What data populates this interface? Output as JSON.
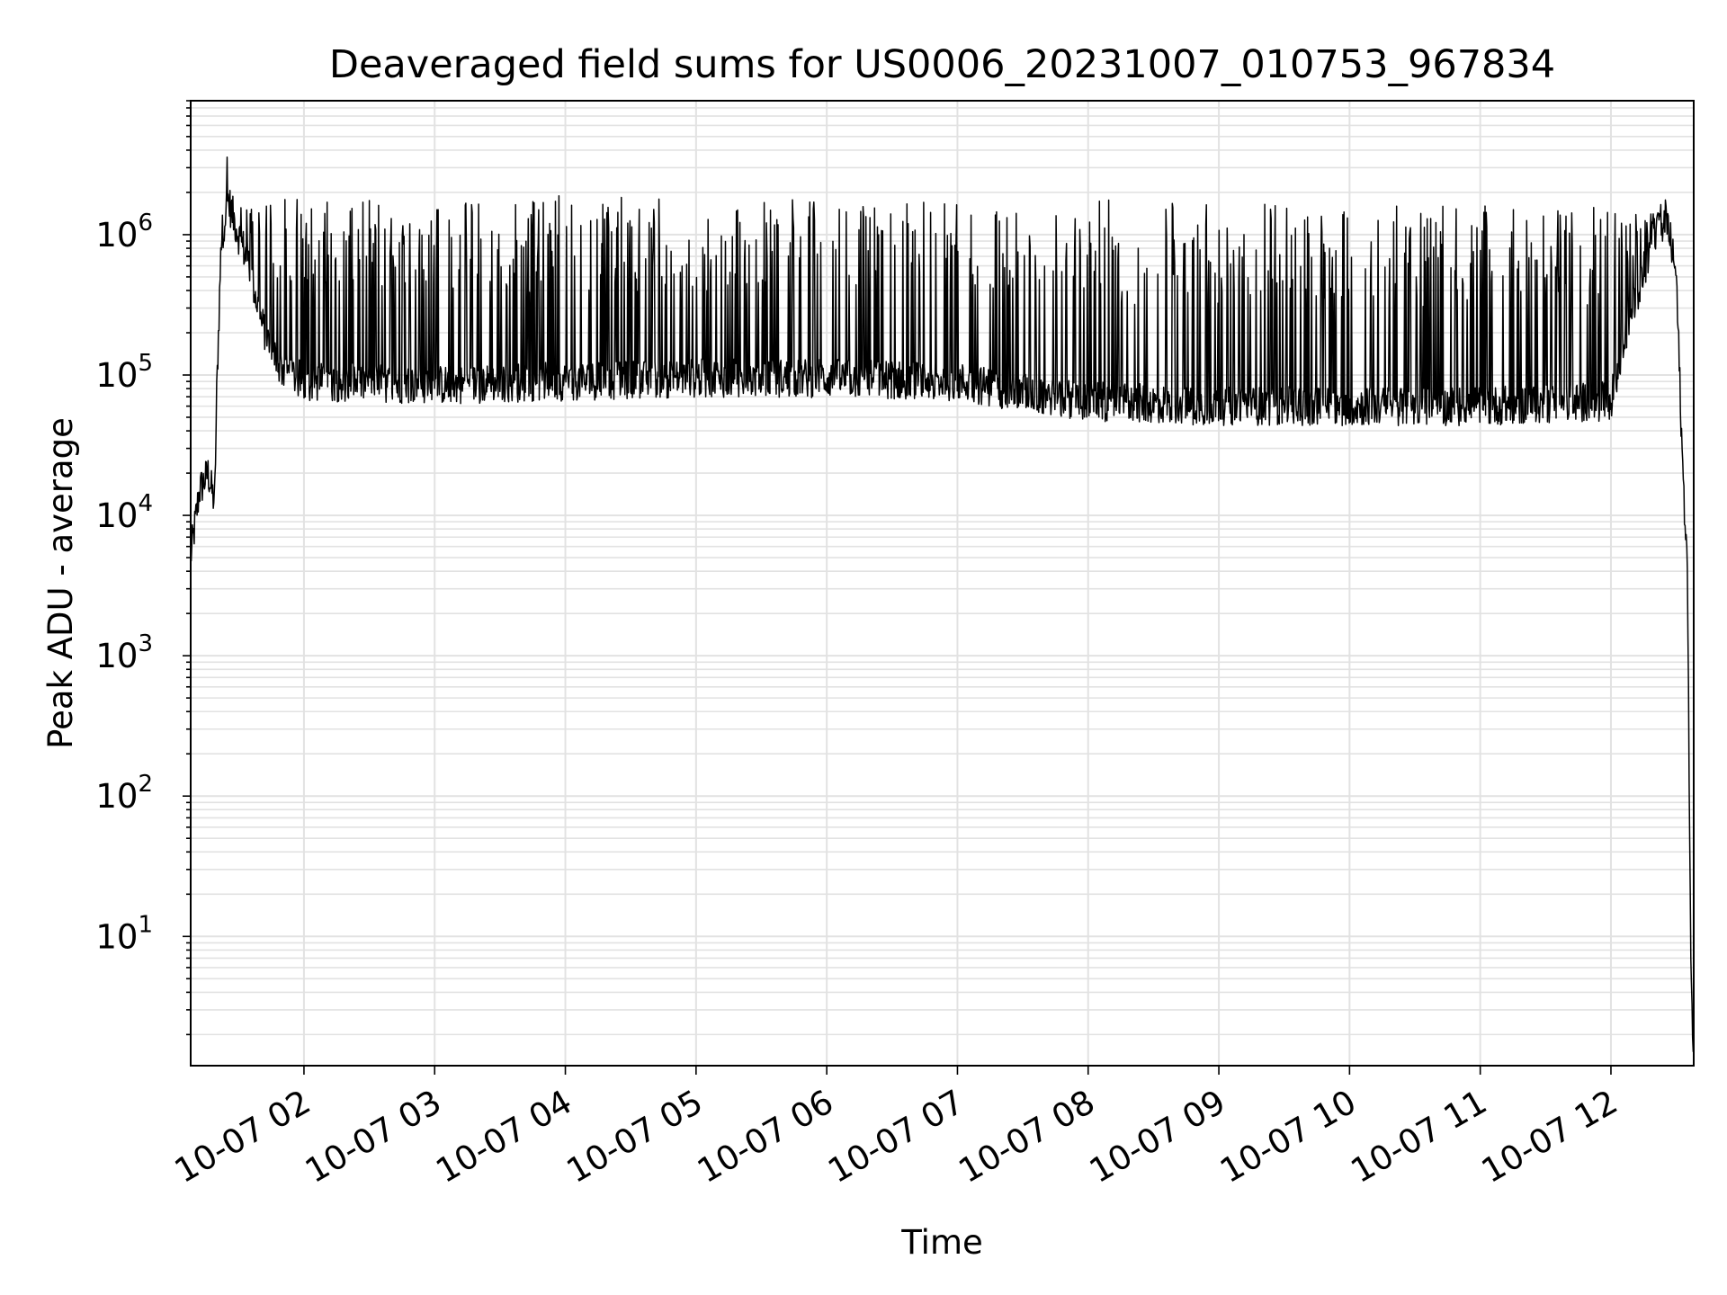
{
  "chart_data": {
    "type": "line",
    "title": "Deaveraged field sums for US0006_20231007_010753_967834",
    "xlabel": "Time",
    "ylabel": "Peak ADU - average",
    "yscale": "log",
    "ylim": [
      1.2,
      9000000
    ],
    "xlim": [
      "2023-10-07 01:08",
      "2023-10-07 12:38"
    ],
    "grid": true,
    "line_color": "#000000",
    "x_ticks": [
      "10-07 02",
      "10-07 03",
      "10-07 04",
      "10-07 05",
      "10-07 06",
      "10-07 07",
      "10-07 08",
      "10-07 09",
      "10-07 10",
      "10-07 11",
      "10-07 12"
    ],
    "x_tick_times": [
      "2023-10-07 02:00",
      "2023-10-07 03:00",
      "2023-10-07 04:00",
      "2023-10-07 05:00",
      "2023-10-07 06:00",
      "2023-10-07 07:00",
      "2023-10-07 08:00",
      "2023-10-07 09:00",
      "2023-10-07 10:00",
      "2023-10-07 11:00",
      "2023-10-07 12:00"
    ],
    "y_ticks": [
      {
        "value": 10,
        "base": "10",
        "exp": "1"
      },
      {
        "value": 100,
        "base": "10",
        "exp": "2"
      },
      {
        "value": 1000,
        "base": "10",
        "exp": "3"
      },
      {
        "value": 10000,
        "base": "10",
        "exp": "4"
      },
      {
        "value": 100000,
        "base": "10",
        "exp": "5"
      },
      {
        "value": 1000000,
        "base": "10",
        "exp": "6"
      }
    ],
    "series": [
      {
        "x": [
          "2023-10-07 01:08",
          "2023-10-07 01:12",
          "2023-10-07 01:16",
          "2023-10-07 01:19",
          "2023-10-07 01:20",
          "2023-10-07 01:22",
          "2023-10-07 01:25",
          "2023-10-07 01:30",
          "2023-10-07 01:35",
          "2023-10-07 01:40",
          "2023-10-07 01:45",
          "2023-10-07 01:50",
          "2023-10-07 02:00",
          "2023-10-07 03:00",
          "2023-10-07 04:00",
          "2023-10-07 05:00",
          "2023-10-07 06:00",
          "2023-10-07 07:00",
          "2023-10-07 07:30",
          "2023-10-07 08:00",
          "2023-10-07 09:00",
          "2023-10-07 10:00",
          "2023-10-07 11:00",
          "2023-10-07 12:00",
          "2023-10-07 12:10",
          "2023-10-07 12:20",
          "2023-10-07 12:26",
          "2023-10-07 12:30",
          "2023-10-07 12:33",
          "2023-10-07 12:35",
          "2023-10-07 12:36",
          "2023-10-07 12:37",
          "2023-10-07 12:38"
        ],
        "y": [
          5000,
          15000,
          20000,
          12000,
          80000,
          900000,
          1800000,
          1000000,
          600000,
          250000,
          150000,
          110000,
          90000,
          85000,
          90000,
          95000,
          95000,
          90000,
          75000,
          65000,
          60000,
          60000,
          60000,
          65000,
          300000,
          1000000,
          1200000,
          500000,
          20000,
          5000,
          100,
          3,
          1.5
        ],
        "upper": [
          null,
          null,
          null,
          null,
          null,
          2500000,
          4500000,
          2500000,
          1800000,
          1800000,
          1800000,
          1800000,
          1800000,
          1800000,
          1900000,
          1800000,
          1800000,
          1700000,
          1500000,
          1800000,
          1800000,
          1600000,
          1600000,
          1600000,
          1500000,
          1400000,
          2000000,
          null,
          null,
          null,
          null,
          null,
          null
        ]
      }
    ]
  }
}
